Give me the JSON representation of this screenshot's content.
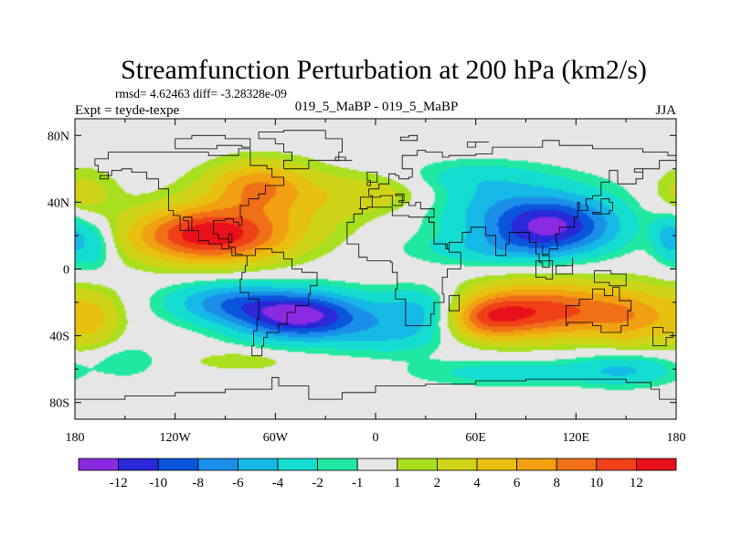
{
  "chart_data": {
    "type": "heatmap",
    "title": "Streamfunction Perturbation at 200 hPa (km2/s)",
    "stats_line": "rmsd= 4.62463 diff= -3.28328e-09",
    "left_label": "Expt = teyde-texpe",
    "center_label": "019_5_MaBP - 019_5_MaBP",
    "right_label": "JJA",
    "xlim": [
      -180,
      180
    ],
    "ylim": [
      -90,
      90
    ],
    "x_ticks": [
      {
        "value": -180,
        "label": "180"
      },
      {
        "value": -120,
        "label": "120W"
      },
      {
        "value": -60,
        "label": "60W"
      },
      {
        "value": 0,
        "label": "0"
      },
      {
        "value": 60,
        "label": "60E"
      },
      {
        "value": 120,
        "label": "120E"
      },
      {
        "value": 180,
        "label": "180"
      }
    ],
    "y_ticks": [
      {
        "value": 80,
        "label": "80N"
      },
      {
        "value": 40,
        "label": "40N"
      },
      {
        "value": 0,
        "label": "0"
      },
      {
        "value": -40,
        "label": "40S"
      },
      {
        "value": -80,
        "label": "80S"
      }
    ],
    "colorbar": {
      "bins": [
        {
          "color": "#8a2be2"
        },
        {
          "color": "#2a28d8"
        },
        {
          "color": "#0a55dc"
        },
        {
          "color": "#1a8ee8"
        },
        {
          "color": "#16b8e6"
        },
        {
          "color": "#14dcd0"
        },
        {
          "color": "#20e8a0"
        },
        {
          "color": "#e6e6e6"
        },
        {
          "color": "#a8e020"
        },
        {
          "color": "#d0d418"
        },
        {
          "color": "#e8c010"
        },
        {
          "color": "#f0a010"
        },
        {
          "color": "#f07018"
        },
        {
          "color": "#f04018"
        },
        {
          "color": "#e8101a"
        }
      ],
      "labels": [
        "-12",
        "-10",
        "-8",
        "-6",
        "-4",
        "-2",
        "-1",
        "1",
        "2",
        "4",
        "6",
        "8",
        "10",
        "12"
      ]
    },
    "features": [
      {
        "lon": -100,
        "lat": 20,
        "rx": 45,
        "ry": 16,
        "amp": 13
      },
      {
        "lon": -70,
        "lat": 50,
        "rx": 28,
        "ry": 14,
        "amp": 6
      },
      {
        "lon": -60,
        "lat": 38,
        "rx": 55,
        "ry": 22,
        "amp": 3
      },
      {
        "lon": 5,
        "lat": 45,
        "rx": 40,
        "ry": 12,
        "amp": 3
      },
      {
        "lon": -175,
        "lat": 45,
        "rx": 20,
        "ry": 15,
        "amp": 3
      },
      {
        "lon": -45,
        "lat": -28,
        "rx": 38,
        "ry": 14,
        "amp": -13
      },
      {
        "lon": -90,
        "lat": -20,
        "rx": 35,
        "ry": 12,
        "amp": -6
      },
      {
        "lon": 30,
        "lat": -25,
        "rx": 30,
        "ry": 14,
        "amp": -6
      },
      {
        "lon": 105,
        "lat": 25,
        "rx": 38,
        "ry": 15,
        "amp": -11
      },
      {
        "lon": 80,
        "lat": 40,
        "rx": 60,
        "ry": 18,
        "amp": -4
      },
      {
        "lon": 70,
        "lat": 12,
        "rx": 50,
        "ry": 10,
        "amp": -3
      },
      {
        "lon": 100,
        "lat": -25,
        "rx": 55,
        "ry": 16,
        "amp": 11
      },
      {
        "lon": 65,
        "lat": -30,
        "rx": 25,
        "ry": 12,
        "amp": 6
      },
      {
        "lon": 155,
        "lat": -30,
        "rx": 25,
        "ry": 18,
        "amp": 4
      },
      {
        "lon": -170,
        "lat": -30,
        "rx": 18,
        "ry": 18,
        "amp": 4
      },
      {
        "lon": -150,
        "lat": -55,
        "rx": 20,
        "ry": 10,
        "amp": -2
      },
      {
        "lon": -80,
        "lat": -55,
        "rx": 30,
        "ry": 6,
        "amp": 2
      },
      {
        "lon": 80,
        "lat": -62,
        "rx": 55,
        "ry": 8,
        "amp": -3
      },
      {
        "lon": 150,
        "lat": -60,
        "rx": 30,
        "ry": 10,
        "amp": -4
      },
      {
        "lon": -170,
        "lat": 15,
        "rx": 14,
        "ry": 16,
        "amp": -4
      },
      {
        "lon": 175,
        "lat": 20,
        "rx": 10,
        "ry": 14,
        "amp": -4
      },
      {
        "lon": 10,
        "lat": -40,
        "rx": 35,
        "ry": 12,
        "amp": -3
      },
      {
        "lon": 55,
        "lat": 55,
        "rx": 40,
        "ry": 10,
        "amp": -2
      }
    ],
    "coastlines": [
      [
        [
          -168,
          66
        ],
        [
          -160,
          70
        ],
        [
          -140,
          70
        ],
        [
          -125,
          70
        ],
        [
          -100,
          68
        ],
        [
          -90,
          68
        ],
        [
          -82,
          72
        ],
        [
          -75,
          62
        ],
        [
          -65,
          60
        ],
        [
          -62,
          55
        ],
        [
          -55,
          50
        ],
        [
          -66,
          45
        ],
        [
          -70,
          42
        ],
        [
          -76,
          38
        ],
        [
          -81,
          31
        ],
        [
          -80,
          26
        ],
        [
          -82,
          28
        ],
        [
          -85,
          30
        ],
        [
          -90,
          29
        ],
        [
          -97,
          27
        ],
        [
          -97,
          21
        ],
        [
          -94,
          18
        ],
        [
          -88,
          16
        ],
        [
          -86,
          21
        ],
        [
          -88,
          13
        ],
        [
          -84,
          9
        ],
        [
          -80,
          8
        ],
        [
          -77,
          8
        ],
        [
          -83,
          8
        ],
        [
          -86,
          12
        ],
        [
          -92,
          15
        ],
        [
          -100,
          17
        ],
        [
          -106,
          23
        ],
        [
          -112,
          29
        ],
        [
          -115,
          31
        ],
        [
          -110,
          23
        ],
        [
          -117,
          32
        ],
        [
          -121,
          35
        ],
        [
          -124,
          42
        ],
        [
          -124,
          48
        ],
        [
          -130,
          54
        ],
        [
          -137,
          58
        ],
        [
          -146,
          60
        ],
        [
          -152,
          59
        ],
        [
          -158,
          56
        ],
        [
          -165,
          54
        ],
        [
          -160,
          58
        ],
        [
          -166,
          62
        ],
        [
          -168,
          66
        ]
      ],
      [
        [
          -77,
          8
        ],
        [
          -72,
          12
        ],
        [
          -62,
          10
        ],
        [
          -55,
          6
        ],
        [
          -50,
          0
        ],
        [
          -44,
          -2
        ],
        [
          -35,
          -5
        ],
        [
          -35,
          -10
        ],
        [
          -39,
          -15
        ],
        [
          -40,
          -22
        ],
        [
          -48,
          -26
        ],
        [
          -53,
          -33
        ],
        [
          -58,
          -38
        ],
        [
          -65,
          -41
        ],
        [
          -67,
          -46
        ],
        [
          -68,
          -52
        ],
        [
          -74,
          -52
        ],
        [
          -74,
          -46
        ],
        [
          -73,
          -37
        ],
        [
          -71,
          -30
        ],
        [
          -70,
          -18
        ],
        [
          -76,
          -14
        ],
        [
          -81,
          -6
        ],
        [
          -80,
          -2
        ],
        [
          -78,
          2
        ],
        [
          -77,
          8
        ]
      ],
      [
        [
          -55,
          60
        ],
        [
          -45,
          60
        ],
        [
          -40,
          65
        ],
        [
          -22,
          70
        ],
        [
          -20,
          78
        ],
        [
          -30,
          83
        ],
        [
          -55,
          82
        ],
        [
          -70,
          78
        ],
        [
          -60,
          75
        ],
        [
          -55,
          70
        ],
        [
          -50,
          65
        ],
        [
          -55,
          60
        ]
      ],
      [
        [
          -10,
          36
        ],
        [
          -9,
          43
        ],
        [
          -2,
          44
        ],
        [
          -4,
          48
        ],
        [
          2,
          51
        ],
        [
          8,
          54
        ],
        [
          8,
          57
        ],
        [
          12,
          56
        ],
        [
          14,
          54
        ],
        [
          20,
          55
        ],
        [
          22,
          60
        ],
        [
          18,
          60
        ],
        [
          16,
          68
        ],
        [
          25,
          71
        ],
        [
          30,
          70
        ],
        [
          40,
          67
        ],
        [
          44,
          68
        ],
        [
          60,
          69
        ],
        [
          70,
          73
        ],
        [
          80,
          73
        ],
        [
          100,
          77
        ],
        [
          110,
          74
        ],
        [
          130,
          72
        ],
        [
          140,
          72
        ],
        [
          160,
          70
        ],
        [
          175,
          68
        ],
        [
          180,
          65
        ],
        [
          170,
          60
        ],
        [
          160,
          58
        ],
        [
          155,
          60
        ],
        [
          160,
          54
        ],
        [
          156,
          51
        ],
        [
          145,
          59
        ],
        [
          140,
          52
        ],
        [
          135,
          44
        ],
        [
          130,
          42
        ],
        [
          126,
          38
        ],
        [
          127,
          35
        ],
        [
          122,
          40
        ],
        [
          121,
          31
        ],
        [
          119,
          25
        ],
        [
          110,
          21
        ],
        [
          108,
          16
        ],
        [
          109,
          12
        ],
        [
          104,
          9
        ],
        [
          100,
          14
        ],
        [
          100,
          8
        ],
        [
          104,
          1
        ],
        [
          100,
          4
        ],
        [
          98,
          9
        ],
        [
          96,
          16
        ],
        [
          92,
          22
        ],
        [
          88,
          22
        ],
        [
          80,
          15
        ],
        [
          78,
          8
        ],
        [
          72,
          20
        ],
        [
          66,
          25
        ],
        [
          58,
          25
        ],
        [
          57,
          22
        ],
        [
          52,
          16
        ],
        [
          44,
          12
        ],
        [
          42,
          15
        ],
        [
          35,
          28
        ],
        [
          32,
          31
        ],
        [
          35,
          36
        ],
        [
          28,
          36
        ],
        [
          27,
          40
        ],
        [
          24,
          38
        ],
        [
          20,
          40
        ],
        [
          14,
          41
        ],
        [
          17,
          45
        ],
        [
          13,
          45
        ],
        [
          12,
          44
        ],
        [
          16,
          38
        ],
        [
          10,
          44
        ],
        [
          3,
          43
        ],
        [
          -2,
          37
        ],
        [
          -5,
          36
        ],
        [
          -10,
          36
        ]
      ],
      [
        [
          -17,
          21
        ],
        [
          -17,
          15
        ],
        [
          -10,
          7
        ],
        [
          -5,
          5
        ],
        [
          5,
          5
        ],
        [
          9,
          4
        ],
        [
          10,
          -2
        ],
        [
          13,
          -12
        ],
        [
          12,
          -18
        ],
        [
          18,
          -34
        ],
        [
          25,
          -34
        ],
        [
          33,
          -27
        ],
        [
          35,
          -20
        ],
        [
          41,
          -15
        ],
        [
          40,
          -5
        ],
        [
          43,
          0
        ],
        [
          51,
          10
        ],
        [
          44,
          12
        ],
        [
          43,
          15
        ],
        [
          35,
          28
        ],
        [
          32,
          31
        ],
        [
          20,
          32
        ],
        [
          10,
          34
        ],
        [
          10,
          37
        ],
        [
          -5,
          36
        ],
        [
          -8,
          33
        ],
        [
          -13,
          28
        ],
        [
          -17,
          21
        ]
      ],
      [
        [
          114,
          -22
        ],
        [
          122,
          -18
        ],
        [
          130,
          -12
        ],
        [
          136,
          -12
        ],
        [
          137,
          -16
        ],
        [
          142,
          -11
        ],
        [
          146,
          -19
        ],
        [
          153,
          -25
        ],
        [
          151,
          -34
        ],
        [
          147,
          -38
        ],
        [
          140,
          -38
        ],
        [
          135,
          -34
        ],
        [
          130,
          -32
        ],
        [
          115,
          -34
        ],
        [
          114,
          -22
        ]
      ],
      [
        [
          -180,
          -78
        ],
        [
          -150,
          -76
        ],
        [
          -120,
          -74
        ],
        [
          -90,
          -72
        ],
        [
          -62,
          -65
        ],
        [
          -58,
          -70
        ],
        [
          -40,
          -78
        ],
        [
          -20,
          -74
        ],
        [
          0,
          -70
        ],
        [
          30,
          -69
        ],
        [
          60,
          -67
        ],
        [
          90,
          -66
        ],
        [
          120,
          -66
        ],
        [
          150,
          -68
        ],
        [
          165,
          -72
        ],
        [
          170,
          -78
        ],
        [
          180,
          -78
        ]
      ],
      [
        [
          44,
          -16
        ],
        [
          50,
          -15
        ],
        [
          50,
          -25
        ],
        [
          44,
          -25
        ],
        [
          44,
          -16
        ]
      ],
      [
        [
          96,
          5
        ],
        [
          106,
          -6
        ],
        [
          102,
          -5
        ],
        [
          96,
          5
        ]
      ],
      [
        [
          108,
          2
        ],
        [
          118,
          7
        ],
        [
          118,
          -3
        ],
        [
          108,
          2
        ]
      ],
      [
        [
          131,
          -1
        ],
        [
          141,
          -3
        ],
        [
          150,
          -10
        ],
        [
          140,
          -8
        ],
        [
          131,
          -1
        ]
      ],
      [
        [
          130,
          33
        ],
        [
          140,
          35
        ],
        [
          142,
          40
        ],
        [
          140,
          42
        ],
        [
          135,
          34
        ],
        [
          130,
          33
        ]
      ],
      [
        [
          -5,
          50
        ],
        [
          -3,
          53
        ],
        [
          -5,
          58
        ],
        [
          -2,
          58
        ],
        [
          1,
          52
        ],
        [
          -5,
          50
        ]
      ],
      [
        [
          -24,
          65
        ],
        [
          -14,
          65
        ],
        [
          -18,
          67
        ],
        [
          -24,
          65
        ]
      ],
      [
        [
          166,
          -46
        ],
        [
          174,
          -41
        ],
        [
          178,
          -38
        ],
        [
          172,
          -35
        ],
        [
          166,
          -46
        ]
      ],
      [
        [
          -120,
          72
        ],
        [
          -95,
          74
        ],
        [
          -80,
          73
        ],
        [
          -75,
          78
        ],
        [
          -90,
          80
        ],
        [
          -110,
          78
        ],
        [
          -120,
          72
        ]
      ],
      [
        [
          15,
          77
        ],
        [
          25,
          80
        ],
        [
          20,
          79
        ],
        [
          15,
          77
        ]
      ],
      [
        [
          55,
          73
        ],
        [
          60,
          76
        ],
        [
          68,
          76
        ],
        [
          55,
          73
        ]
      ]
    ]
  }
}
